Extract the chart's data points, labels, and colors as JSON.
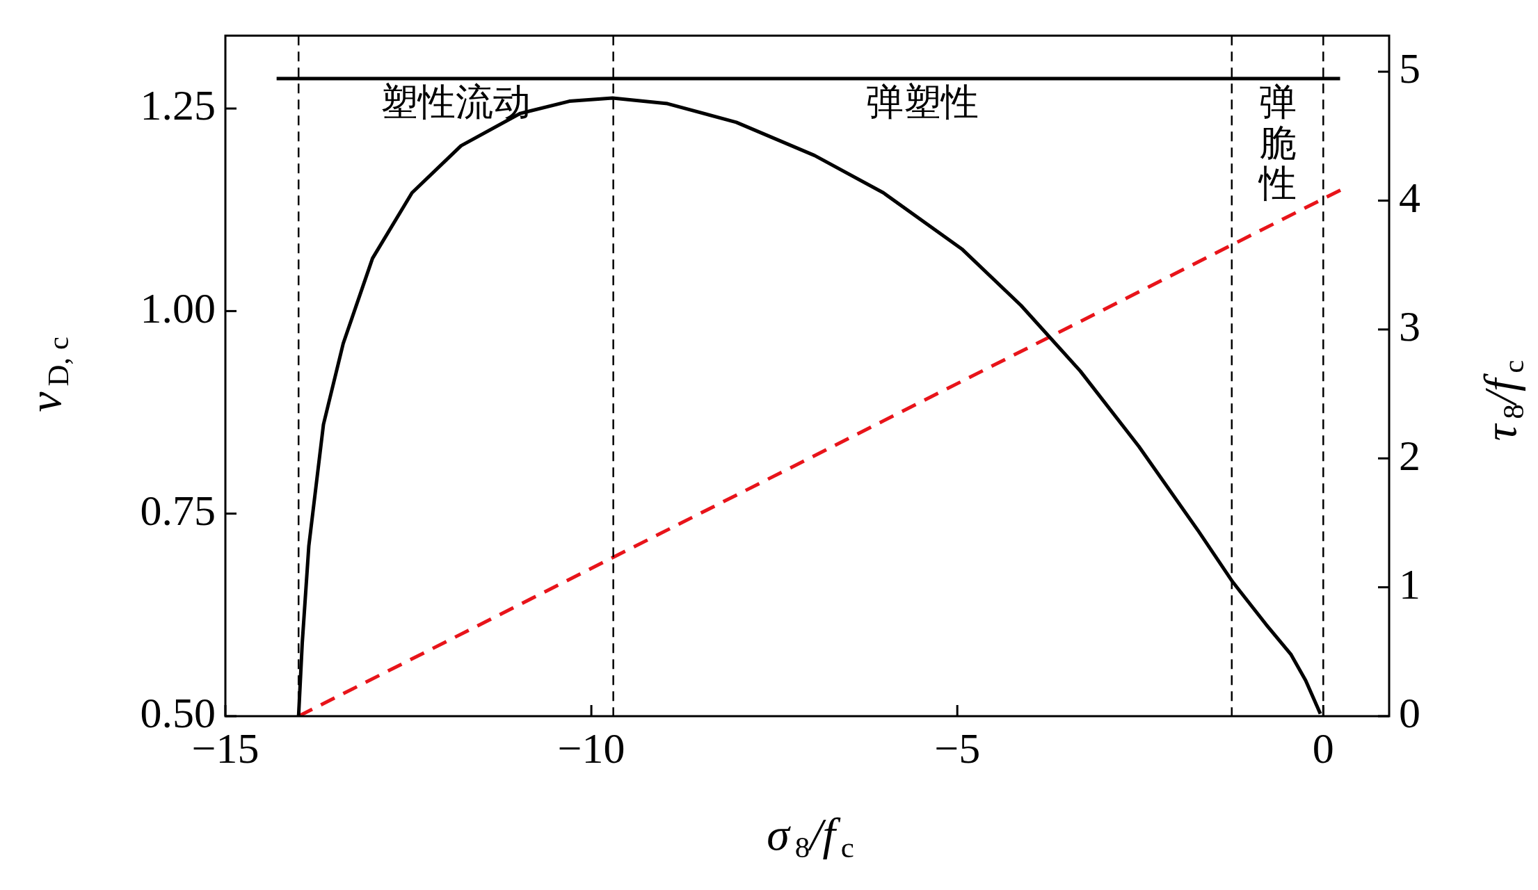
{
  "chart_data": {
    "type": "line",
    "xlabel": "σ$_{8}$/f$_{c}$",
    "ylabel": "v$_{D, c}$",
    "y2label": "τ$_{8}$/f$_{c}$",
    "xlim": [
      -15,
      0.9
    ],
    "xticks": [
      {
        "value": -15,
        "label": "−15"
      },
      {
        "value": -10,
        "label": "−10"
      },
      {
        "value": -5,
        "label": "−5"
      },
      0
    ],
    "ylim": [
      0.5,
      1.34
    ],
    "yticks": [
      {
        "value": 0.5,
        "label": "0.50"
      },
      {
        "value": 0.75,
        "label": "0.75"
      },
      {
        "value": 1,
        "label": "1.00"
      },
      1.25
    ],
    "y2lim": [
      0,
      5.28
    ],
    "y2ticks": [
      0,
      1,
      2,
      3,
      4,
      5
    ],
    "grid": false,
    "legend": false,
    "marker": "none",
    "series": [
      {
        "color": "#000000",
        "line_style": "solid",
        "x": [
          -14.0,
          -13.95,
          -13.86,
          -13.66,
          -13.39,
          -12.99,
          -12.45,
          -11.78,
          -10.97,
          -10.3,
          -9.71,
          -8.96,
          -8.02,
          -6.95,
          -6.01,
          -4.93,
          -4.13,
          -3.32,
          -2.52,
          -1.71,
          -1.24,
          -0.78,
          -0.44,
          -0.24,
          -0.04
        ],
        "values": [
          0.5,
          0.59,
          0.71,
          0.86,
          0.96,
          1.065,
          1.146,
          1.204,
          1.244,
          1.259,
          1.263,
          1.256,
          1.233,
          1.192,
          1.146,
          1.076,
          1.007,
          0.926,
          0.833,
          0.729,
          0.666,
          0.613,
          0.576,
          0.544,
          0.503
        ]
      },
      {
        "color": "#e8141a",
        "line_style": "dashed",
        "axis": "y2",
        "x": [
          -14.0,
          0.3
        ],
        "values": [
          0,
          4.1
        ]
      },
      {
        "color": "#000000",
        "line_style": "solid",
        "x": [
          -14.3,
          0.23
        ],
        "values": [
          1.287,
          1.287
        ]
      }
    ],
    "ref_lines": [
      {
        "axis": "x",
        "value": -14.0,
        "color": "#000000",
        "line_style": "dashed"
      },
      {
        "axis": "x",
        "value": -9.7,
        "color": "#000000",
        "line_style": "dashed"
      },
      {
        "axis": "x",
        "value": -1.25,
        "color": "#000000",
        "line_style": "dashed"
      },
      {
        "axis": "x",
        "value": 0,
        "color": "#000000",
        "line_style": "dashed"
      }
    ],
    "annotations": [
      "塑性流动",
      "弹塑性",
      "弹脆性"
    ]
  }
}
